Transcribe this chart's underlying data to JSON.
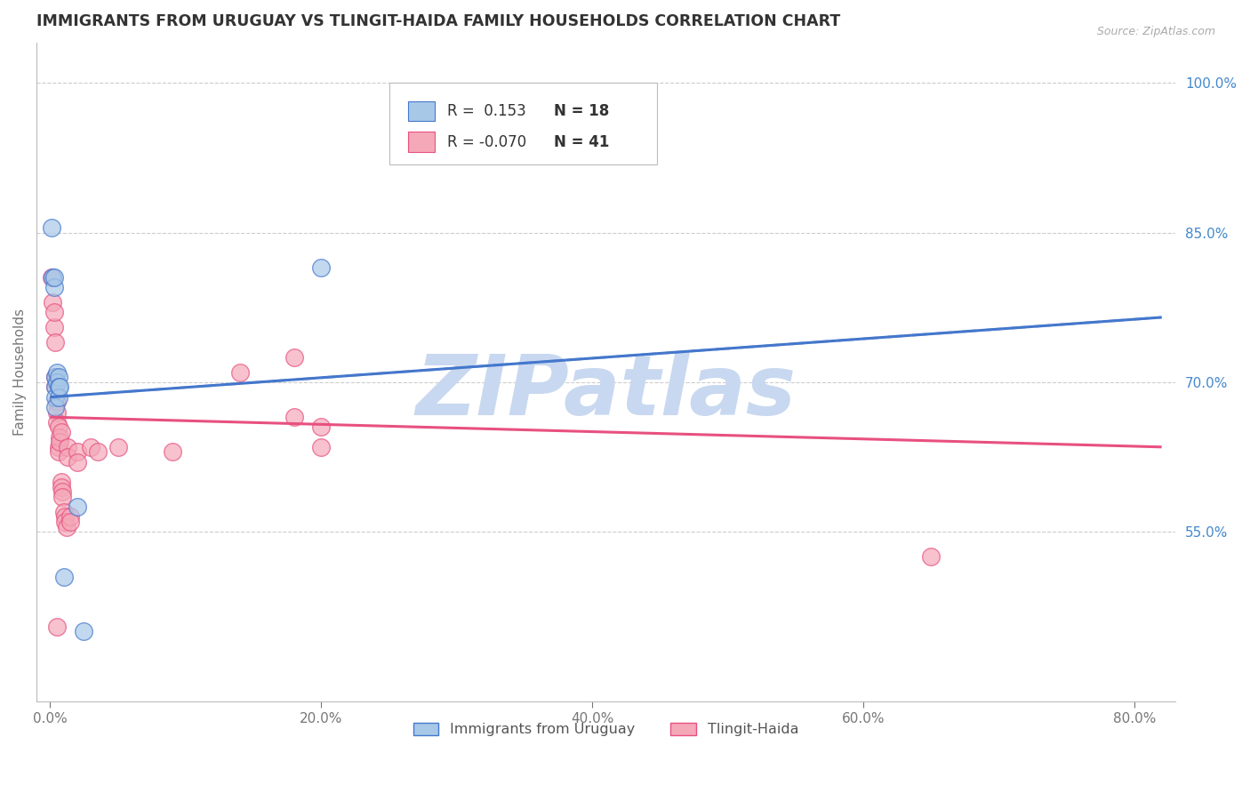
{
  "title": "IMMIGRANTS FROM URUGUAY VS TLINGIT-HAIDA FAMILY HOUSEHOLDS CORRELATION CHART",
  "source": "Source: ZipAtlas.com",
  "ylabel": "Family Households",
  "xlabel_vals": [
    0.0,
    20.0,
    40.0,
    60.0,
    80.0
  ],
  "ylabel_vals": [
    55.0,
    70.0,
    85.0,
    100.0
  ],
  "xlim": [
    -1.0,
    83.0
  ],
  "ylim": [
    38.0,
    104.0
  ],
  "R_uruguay": 0.153,
  "N_uruguay": 18,
  "R_tlingit": -0.07,
  "N_tlingit": 41,
  "blue_color": "#a8c8e8",
  "pink_color": "#f4a8b8",
  "blue_line_color": "#4477cc",
  "pink_line_color": "#e85080",
  "blue_dash_color": "#88aadd",
  "watermark": "ZIPatlas",
  "watermark_color": "#c8d8f0",
  "uruguay_line": [
    0.0,
    68.5,
    82.0,
    76.5
  ],
  "uruguay_dash": [
    0.0,
    68.5,
    82.0,
    76.5
  ],
  "tlingit_line": [
    0.0,
    66.5,
    82.0,
    63.5
  ],
  "uruguay_points": [
    [
      0.1,
      85.5
    ],
    [
      0.2,
      80.5
    ],
    [
      0.3,
      79.5
    ],
    [
      0.3,
      80.5
    ],
    [
      0.4,
      70.5
    ],
    [
      0.4,
      69.5
    ],
    [
      0.4,
      68.5
    ],
    [
      0.4,
      67.5
    ],
    [
      0.5,
      71.0
    ],
    [
      0.5,
      70.0
    ],
    [
      0.6,
      70.5
    ],
    [
      0.6,
      69.5
    ],
    [
      0.6,
      68.5
    ],
    [
      0.7,
      69.5
    ],
    [
      1.0,
      50.5
    ],
    [
      2.0,
      57.5
    ],
    [
      20.0,
      81.5
    ],
    [
      2.5,
      45.0
    ]
  ],
  "tlingit_points": [
    [
      0.1,
      80.5
    ],
    [
      0.2,
      78.0
    ],
    [
      0.3,
      75.5
    ],
    [
      0.3,
      77.0
    ],
    [
      0.4,
      74.0
    ],
    [
      0.4,
      70.5
    ],
    [
      0.4,
      69.5
    ],
    [
      0.5,
      68.0
    ],
    [
      0.5,
      67.0
    ],
    [
      0.5,
      66.0
    ],
    [
      0.6,
      65.5
    ],
    [
      0.6,
      63.5
    ],
    [
      0.6,
      63.0
    ],
    [
      0.7,
      64.5
    ],
    [
      0.7,
      64.0
    ],
    [
      0.8,
      65.0
    ],
    [
      0.8,
      60.0
    ],
    [
      0.8,
      59.5
    ],
    [
      0.9,
      59.0
    ],
    [
      0.9,
      58.5
    ],
    [
      1.0,
      57.0
    ],
    [
      1.1,
      56.5
    ],
    [
      1.1,
      56.0
    ],
    [
      1.2,
      55.5
    ],
    [
      1.3,
      63.5
    ],
    [
      1.3,
      62.5
    ],
    [
      1.5,
      56.5
    ],
    [
      1.5,
      56.0
    ],
    [
      2.0,
      63.0
    ],
    [
      2.0,
      62.0
    ],
    [
      3.0,
      63.5
    ],
    [
      3.5,
      63.0
    ],
    [
      5.0,
      63.5
    ],
    [
      9.0,
      63.0
    ],
    [
      14.0,
      71.0
    ],
    [
      18.0,
      72.5
    ],
    [
      18.0,
      66.5
    ],
    [
      20.0,
      65.5
    ],
    [
      20.0,
      63.5
    ],
    [
      65.0,
      52.5
    ],
    [
      0.5,
      45.5
    ]
  ]
}
